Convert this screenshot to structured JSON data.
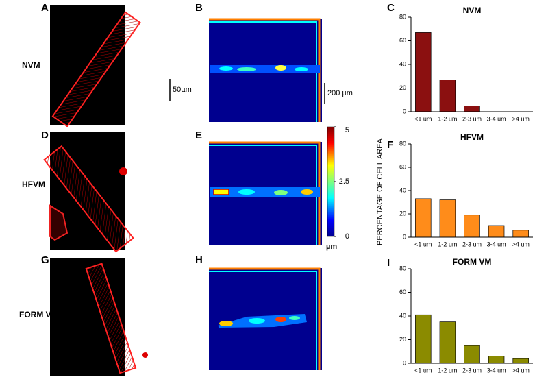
{
  "panels": [
    "A",
    "B",
    "C",
    "D",
    "E",
    "F",
    "G",
    "H",
    "I"
  ],
  "rows": [
    "NVM",
    "HFVM",
    "FORM VM"
  ],
  "scale_bars": [
    "50µm",
    "200 µm"
  ],
  "colorbar": {
    "lim": [
      0,
      5
    ],
    "ticks": [
      5,
      2.5,
      0
    ],
    "unit": "µm"
  },
  "y_axis_label": "PERCENTAGE OF CELL AREA",
  "chart_data": [
    {
      "type": "bar",
      "title": "NVM",
      "categories": [
        "<1 um",
        "1-2 um",
        "2-3 um",
        "3-4 um",
        ">4 um"
      ],
      "values": [
        67,
        27,
        5,
        0,
        0
      ],
      "color": "#8b1010",
      "ylim": [
        0,
        80
      ],
      "yticks": [
        0,
        20,
        40,
        60,
        80
      ]
    },
    {
      "type": "bar",
      "title": "HFVM",
      "categories": [
        "<1 um",
        "1-2 um",
        "2-3 um",
        "3-4 um",
        ">4 um"
      ],
      "values": [
        33,
        32,
        19,
        10,
        6
      ],
      "color": "#ff8c1a",
      "ylim": [
        0,
        80
      ],
      "yticks": [
        0,
        20,
        40,
        60,
        80
      ]
    },
    {
      "type": "bar",
      "title": "FORM VM",
      "categories": [
        "<1 um",
        "1-2 um",
        "2-3 um",
        "3-4 um",
        ">4 um"
      ],
      "values": [
        41,
        35,
        15,
        6,
        4
      ],
      "color": "#8b8b00",
      "ylim": [
        0,
        80
      ],
      "yticks": [
        0,
        20,
        40,
        60,
        80
      ]
    }
  ]
}
